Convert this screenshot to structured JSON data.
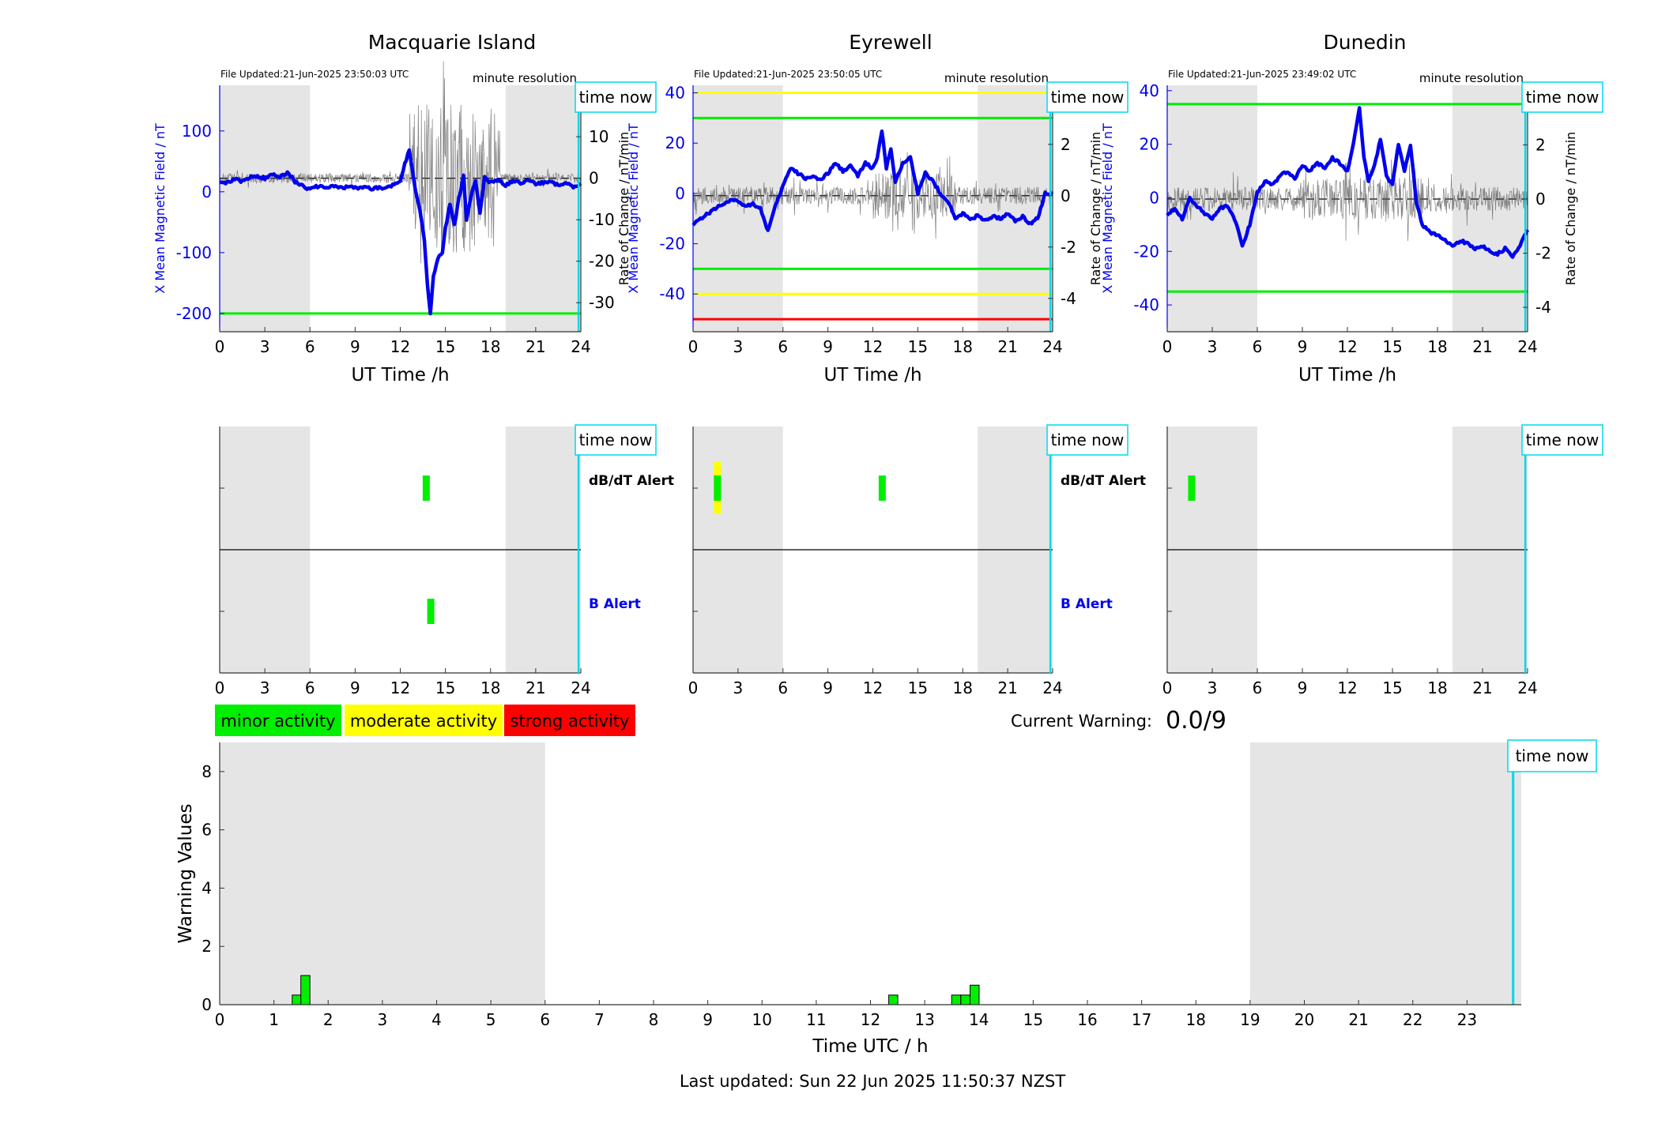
{
  "stations": [
    {
      "title": "Macquarie Island",
      "file_updated": "File Updated:21-Jun-2025 23:50:03 UTC",
      "resolution": "minute resolution",
      "time_now_label": "time now",
      "left_ylabel": "X Mean Magnetic Field / nT",
      "right_ylabel": "Rate of Change / nT/min",
      "xlabel": "UT Time /h",
      "b_ylim": [
        -230,
        175
      ],
      "b_yticks": [
        -200,
        -100,
        0,
        100
      ],
      "d_ylim": [
        -37,
        22.4
      ],
      "d_yticks": [
        -30,
        -20,
        -10,
        0,
        10,
        20
      ],
      "b_threshold_lines": [
        {
          "value": -200,
          "color": "#00ee00"
        }
      ],
      "d_threshold_lines": [],
      "b_smooth": [
        [
          0,
          18
        ],
        [
          0.5,
          15
        ],
        [
          1,
          20
        ],
        [
          1.5,
          17
        ],
        [
          2,
          24
        ],
        [
          2.5,
          26
        ],
        [
          3,
          22
        ],
        [
          3.5,
          29
        ],
        [
          4,
          25
        ],
        [
          4.5,
          32
        ],
        [
          5,
          17
        ],
        [
          5.5,
          10
        ],
        [
          6,
          4
        ],
        [
          6.5,
          9
        ],
        [
          7,
          6
        ],
        [
          7.5,
          9
        ],
        [
          8,
          7
        ],
        [
          8.5,
          8
        ],
        [
          9,
          6
        ],
        [
          9.5,
          8
        ],
        [
          10,
          5
        ],
        [
          10.5,
          7
        ],
        [
          11,
          6
        ],
        [
          11.5,
          11
        ],
        [
          12,
          20
        ],
        [
          12.3,
          45
        ],
        [
          12.6,
          70
        ],
        [
          12.8,
          35
        ],
        [
          13,
          5
        ],
        [
          13.3,
          -30
        ],
        [
          13.6,
          -80
        ],
        [
          13.8,
          -150
        ],
        [
          14,
          -200
        ],
        [
          14.2,
          -140
        ],
        [
          14.5,
          -110
        ],
        [
          14.8,
          -100
        ],
        [
          15,
          -60
        ],
        [
          15.3,
          -20
        ],
        [
          15.6,
          -55
        ],
        [
          15.9,
          -10
        ],
        [
          16.2,
          25
        ],
        [
          16.4,
          -45
        ],
        [
          16.7,
          -10
        ],
        [
          17,
          20
        ],
        [
          17.3,
          -35
        ],
        [
          17.6,
          25
        ],
        [
          18,
          15
        ],
        [
          18.5,
          20
        ],
        [
          19,
          10
        ],
        [
          19.5,
          18
        ],
        [
          20,
          15
        ],
        [
          20.5,
          20
        ],
        [
          21,
          12
        ],
        [
          21.5,
          15
        ],
        [
          22,
          18
        ],
        [
          22.5,
          10
        ],
        [
          23,
          14
        ],
        [
          23.5,
          8
        ],
        [
          24,
          12
        ]
      ],
      "d_noise": {
        "quiet": 1.2,
        "active_start": 12.6,
        "active_end": 18.6,
        "active": 18
      },
      "night_bands": [
        [
          0,
          6
        ],
        [
          19,
          24
        ]
      ],
      "time_now": 23.85
    },
    {
      "title": "Eyrewell",
      "file_updated": "File Updated:21-Jun-2025 23:50:05 UTC",
      "resolution": "minute resolution",
      "time_now_label": "time now",
      "left_ylabel": "X Mean Magnetic Field / nT",
      "right_ylabel": "Rate of Change / nT/min",
      "xlabel": "UT Time /h",
      "b_ylim": [
        -55,
        43
      ],
      "b_yticks": [
        -40,
        -20,
        0,
        20,
        40
      ],
      "d_ylim": [
        -5.3,
        4.3
      ],
      "d_yticks": [
        -4,
        -2,
        0,
        2,
        4
      ],
      "b_threshold_lines": [
        {
          "value": 40,
          "color": "#ffff00"
        },
        {
          "value": 30,
          "color": "#00ee00"
        },
        {
          "value": -30,
          "color": "#00ee00"
        },
        {
          "value": -40,
          "color": "#ffff00"
        },
        {
          "value": -50,
          "color": "#ff0000"
        }
      ],
      "d_threshold_lines": [],
      "b_smooth": [
        [
          0,
          -12
        ],
        [
          0.5,
          -10
        ],
        [
          1,
          -8
        ],
        [
          1.5,
          -6
        ],
        [
          2,
          -4
        ],
        [
          2.5,
          -3
        ],
        [
          3,
          -3
        ],
        [
          3.5,
          -5
        ],
        [
          4,
          -4
        ],
        [
          4.5,
          -6
        ],
        [
          5,
          -15
        ],
        [
          5.5,
          -5
        ],
        [
          6,
          3
        ],
        [
          6.5,
          10
        ],
        [
          7,
          8
        ],
        [
          7.5,
          6
        ],
        [
          8,
          7
        ],
        [
          8.5,
          5
        ],
        [
          9,
          8
        ],
        [
          9.5,
          12
        ],
        [
          10,
          9
        ],
        [
          10.5,
          11
        ],
        [
          11,
          7
        ],
        [
          11.5,
          12
        ],
        [
          12,
          10
        ],
        [
          12.3,
          14
        ],
        [
          12.6,
          25
        ],
        [
          12.9,
          10
        ],
        [
          13.2,
          18
        ],
        [
          13.5,
          4
        ],
        [
          14,
          12
        ],
        [
          14.5,
          15
        ],
        [
          15,
          0
        ],
        [
          15.5,
          8
        ],
        [
          16,
          5
        ],
        [
          16.5,
          0
        ],
        [
          17,
          -3
        ],
        [
          17.5,
          -10
        ],
        [
          18,
          -8
        ],
        [
          18.5,
          -10
        ],
        [
          19,
          -9
        ],
        [
          19.5,
          -11
        ],
        [
          20,
          -9
        ],
        [
          20.5,
          -10
        ],
        [
          21,
          -8
        ],
        [
          21.5,
          -11
        ],
        [
          22,
          -9
        ],
        [
          22.5,
          -12
        ],
        [
          23,
          -10
        ],
        [
          23.5,
          0
        ],
        [
          24,
          0
        ]
      ],
      "d_noise": {
        "quiet": 0.35,
        "active_start": 12,
        "active_end": 17.5,
        "active": 0.9
      },
      "night_bands": [
        [
          0,
          6
        ],
        [
          19,
          24
        ]
      ],
      "time_now": 23.85
    },
    {
      "title": "Dunedin",
      "file_updated": "File Updated:21-Jun-2025 23:49:02 UTC",
      "resolution": "minute resolution",
      "time_now_label": "time now",
      "left_ylabel": "X Mean Magnetic Field / nT",
      "right_ylabel": "Rate of Change / nT/min",
      "xlabel": "UT Time /h",
      "b_ylim": [
        -50,
        42
      ],
      "b_yticks": [
        -40,
        -20,
        0,
        20,
        40
      ],
      "d_ylim": [
        -4.9,
        4.2
      ],
      "d_yticks": [
        -4,
        -2,
        0,
        2,
        4
      ],
      "b_threshold_lines": [
        {
          "value": 35,
          "color": "#00ee00"
        },
        {
          "value": -35,
          "color": "#00ee00"
        }
      ],
      "d_threshold_lines": [],
      "b_smooth": [
        [
          0,
          -6
        ],
        [
          0.5,
          -4
        ],
        [
          1,
          -8
        ],
        [
          1.5,
          0
        ],
        [
          2,
          -3
        ],
        [
          2.5,
          -6
        ],
        [
          3,
          -8
        ],
        [
          3.5,
          -4
        ],
        [
          4,
          -3
        ],
        [
          4.5,
          -8
        ],
        [
          5,
          -18
        ],
        [
          5.5,
          -10
        ],
        [
          6,
          2
        ],
        [
          6.5,
          6
        ],
        [
          7,
          5
        ],
        [
          7.5,
          8
        ],
        [
          8,
          10
        ],
        [
          8.5,
          7
        ],
        [
          9,
          12
        ],
        [
          9.5,
          10
        ],
        [
          10,
          13
        ],
        [
          10.5,
          11
        ],
        [
          11,
          15
        ],
        [
          11.5,
          13
        ],
        [
          12,
          10
        ],
        [
          12.4,
          20
        ],
        [
          12.8,
          34
        ],
        [
          13.1,
          15
        ],
        [
          13.4,
          6
        ],
        [
          13.8,
          12
        ],
        [
          14.2,
          22
        ],
        [
          14.6,
          8
        ],
        [
          15,
          5
        ],
        [
          15.4,
          20
        ],
        [
          15.8,
          10
        ],
        [
          16.2,
          20
        ],
        [
          16.6,
          -2
        ],
        [
          17,
          -10
        ],
        [
          17.5,
          -13
        ],
        [
          18,
          -14
        ],
        [
          18.5,
          -16
        ],
        [
          19,
          -18
        ],
        [
          19.5,
          -16
        ],
        [
          20,
          -17
        ],
        [
          20.5,
          -19
        ],
        [
          21,
          -18
        ],
        [
          21.5,
          -20
        ],
        [
          22,
          -21
        ],
        [
          22.5,
          -19
        ],
        [
          23,
          -22
        ],
        [
          23.5,
          -18
        ],
        [
          24,
          -12
        ]
      ],
      "d_noise": {
        "quiet": 0.45,
        "active_start": 9,
        "active_end": 17,
        "active": 0.8
      },
      "night_bands": [
        [
          0,
          6
        ],
        [
          19,
          24
        ]
      ],
      "time_now": 23.85
    }
  ],
  "alerts": {
    "dbdt_label": "dB/dT Alert",
    "b_label": "B Alert",
    "time_now_label": "time now",
    "panels": [
      {
        "dbdt_marks": [
          {
            "t": 13.7,
            "level": "minor"
          }
        ],
        "b_marks": [
          {
            "t": 14.0,
            "level": "minor"
          }
        ],
        "night_bands": [
          [
            0,
            6
          ],
          [
            19,
            24
          ]
        ],
        "time_now": 23.85
      },
      {
        "dbdt_marks": [
          {
            "t": 1.6,
            "level": "moderate"
          },
          {
            "t": 1.6,
            "level": "minor"
          },
          {
            "t": 12.6,
            "level": "minor"
          }
        ],
        "b_marks": [],
        "night_bands": [
          [
            0,
            6
          ],
          [
            19,
            24
          ]
        ],
        "time_now": 23.85
      },
      {
        "dbdt_marks": [
          {
            "t": 1.6,
            "level": "minor"
          }
        ],
        "b_marks": [],
        "night_bands": [
          [
            0,
            6
          ],
          [
            19,
            24
          ]
        ],
        "time_now": 23.85
      }
    ]
  },
  "legend": {
    "items": [
      {
        "label": "minor activity",
        "color": "#00ee00"
      },
      {
        "label": "moderate activity",
        "color": "#ffff00"
      },
      {
        "label": "strong activity",
        "color": "#ff0000"
      }
    ]
  },
  "current_warning": {
    "label": "Current Warning:",
    "value": "0.0/9"
  },
  "colors": {
    "minor": "#00ee00",
    "moderate": "#ffff00",
    "strong": "#ff0000",
    "field_line": "#0000ee",
    "time_now": "#00d8e8",
    "night": "#e5e5e5"
  },
  "chart_data": [
    {
      "type": "bar",
      "title": "",
      "xlabel": "Time UTC / h",
      "ylabel": "Warning Values",
      "xlim": [
        0,
        24
      ],
      "ylim": [
        0,
        9
      ],
      "xticks": [
        0,
        1,
        2,
        3,
        4,
        5,
        6,
        7,
        8,
        9,
        10,
        11,
        12,
        13,
        14,
        15,
        16,
        17,
        18,
        19,
        20,
        21,
        22,
        23
      ],
      "yticks": [
        0,
        2,
        4,
        6,
        8
      ],
      "x": [
        1.42,
        1.58,
        12.42,
        13.58,
        13.75,
        13.92
      ],
      "values": [
        0.33,
        1.0,
        0.33,
        0.33,
        0.33,
        0.67
      ],
      "bar_width_h": 0.167,
      "night_bands": [
        [
          0,
          6
        ],
        [
          19,
          24
        ]
      ],
      "time_now": 23.85,
      "time_now_label": "time now"
    }
  ],
  "footer": {
    "last_updated": "Last updated: Sun 22 Jun 2025 11:50:37 NZST"
  }
}
